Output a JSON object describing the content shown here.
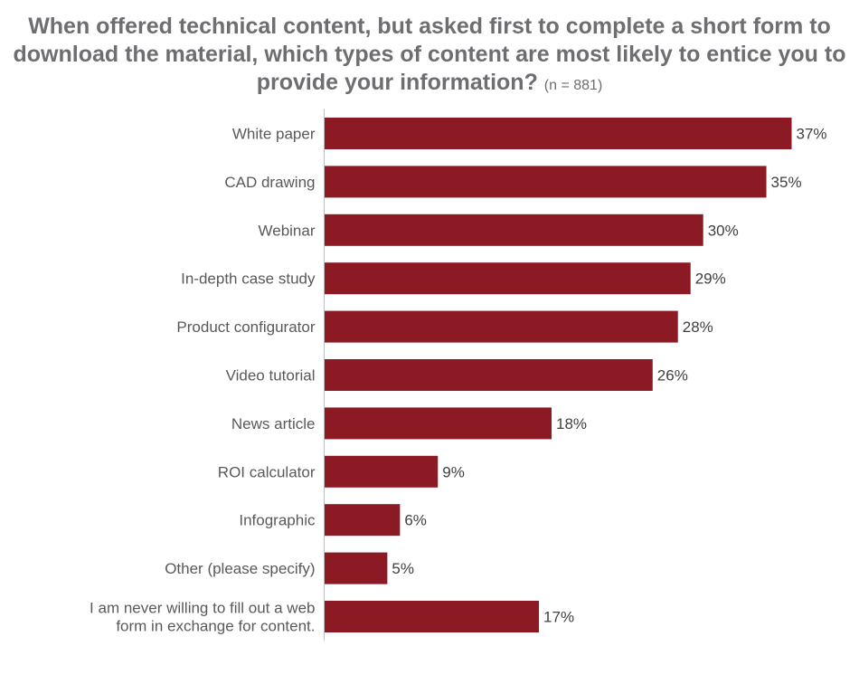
{
  "chart_data": {
    "type": "bar",
    "orientation": "horizontal",
    "title_lines": [
      "When offered technical content, but asked first to complete a short form to",
      "download the material, which types of content are most likely to entice you to",
      "provide your information?"
    ],
    "title_note": "(n = 881)",
    "categories": [
      "White paper",
      "CAD drawing",
      "Webinar",
      "In-depth case study",
      "Product configurator",
      "Video tutorial",
      "News article",
      "ROI calculator",
      "Infographic",
      "Other (please specify)",
      "I am never willing to fill out a web form in exchange for content."
    ],
    "category_label_lines": [
      [
        "White paper"
      ],
      [
        "CAD drawing"
      ],
      [
        "Webinar"
      ],
      [
        "In-depth case study"
      ],
      [
        "Product configurator"
      ],
      [
        "Video tutorial"
      ],
      [
        "News article"
      ],
      [
        "ROI calculator"
      ],
      [
        "Infographic"
      ],
      [
        "Other (please specify)"
      ],
      [
        "I am never willing to fill out a web",
        "form in exchange for content."
      ]
    ],
    "values": [
      37,
      35,
      30,
      29,
      28,
      26,
      18,
      9,
      6,
      5,
      17
    ],
    "value_labels": [
      "37%",
      "35%",
      "30%",
      "29%",
      "28%",
      "26%",
      "18%",
      "9%",
      "6%",
      "5%",
      "17%"
    ],
    "unit": "%",
    "xlim": [
      0,
      37
    ],
    "grid": false,
    "legend": "none",
    "bar_color": "#8c1a24",
    "axis_color": "#bcbec0"
  }
}
